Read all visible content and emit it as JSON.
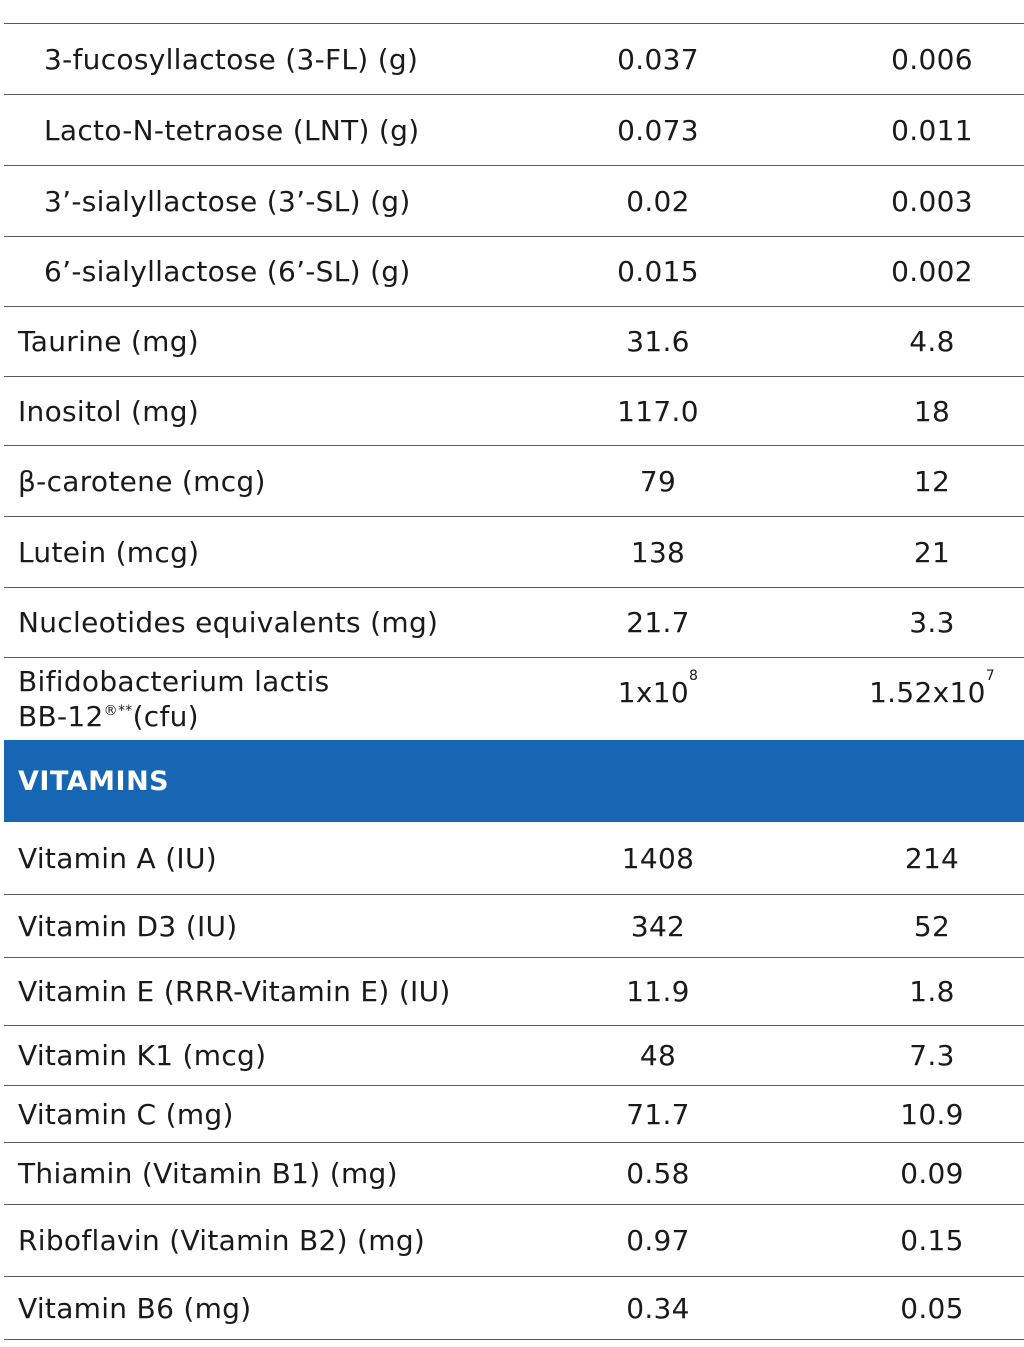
{
  "hmo_rows": [
    {
      "label": "3-fucosyllactose (3-FL) (g)",
      "v1": "0.037",
      "v2": "0.006"
    },
    {
      "label": "Lacto-N-tetraose (LNT) (g)",
      "v1": "0.073",
      "v2": "0.011"
    },
    {
      "label": "3’-sialyllactose (3’-SL) (g)",
      "v1": "0.02",
      "v2": "0.003"
    },
    {
      "label": "6’-sialyllactose (6’-SL) (g)",
      "v1": "0.015",
      "v2": "0.002"
    }
  ],
  "other_rows": [
    {
      "label": "Taurine (mg)",
      "v1": "31.6",
      "v2": "4.8"
    },
    {
      "label": "Inositol (mg)",
      "v1": "117.0",
      "v2": "18"
    },
    {
      "label": "β-carotene (mcg)",
      "v1": "79",
      "v2": "12"
    },
    {
      "label": "Lutein (mcg)",
      "v1": "138",
      "v2": "21"
    },
    {
      "label": "Nucleotides equivalents (mg)",
      "v1": "21.7",
      "v2": "3.3"
    }
  ],
  "bifido": {
    "label_line1": "Bifidobacterium lactis",
    "label_line2": "BB-12",
    "label_sup": "®**",
    "label_unit": "(cfu)",
    "v1_base": "1x10",
    "v1_exp": "8",
    "v2_base": "1.52x10",
    "v2_exp": "7"
  },
  "vitamins_header": "VITAMINS",
  "vitamin_rows": [
    {
      "label": "Vitamin A (IU)",
      "v1": "1408",
      "v2": "214"
    },
    {
      "label": "Vitamin D3 (IU)",
      "v1": "342",
      "v2": "52"
    },
    {
      "label": "Vitamin E (RRR-Vitamin E) (IU)",
      "v1": "11.9",
      "v2": "1.8"
    },
    {
      "label": "Vitamin K1 (mcg)",
      "v1": "48",
      "v2": "7.3"
    },
    {
      "label": "Vitamin C (mg)",
      "v1": "71.7",
      "v2": "10.9"
    },
    {
      "label": "Thiamin (Vitamin B1) (mg)",
      "v1": "0.58",
      "v2": "0.09"
    },
    {
      "label": "Riboflavin (Vitamin B2) (mg)",
      "v1": "0.97",
      "v2": "0.15"
    },
    {
      "label": "Vitamin B6 (mg)",
      "v1": "0.34",
      "v2": "0.05"
    }
  ]
}
